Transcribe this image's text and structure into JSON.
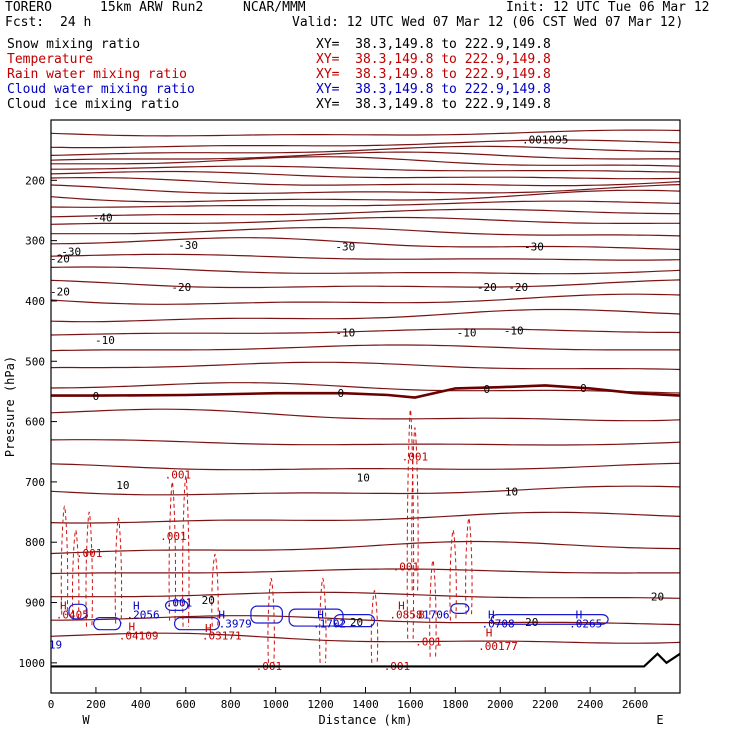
{
  "header": {
    "model": "TORERO",
    "resolution": "15km ARW",
    "run": "Run2",
    "org": "NCAR/MMM",
    "init": "Init: 12 UTC Tue 06 Mar 12",
    "fcst_label": "Fcst:",
    "fcst_value": "24 h",
    "valid": "Valid: 12 UTC Wed 07 Mar 12 (06 CST Wed 07 Mar 12)"
  },
  "legend": [
    {
      "name": "Snow mixing ratio",
      "xy": "XY=  38.3,149.8 to 222.9,149.8",
      "color": "#000000"
    },
    {
      "name": "Temperature",
      "xy": "XY=  38.3,149.8 to 222.9,149.8",
      "color": "#c00000"
    },
    {
      "name": "Rain water mixing ratio",
      "xy": "XY=  38.3,149.8 to 222.9,149.8",
      "color": "#c00000"
    },
    {
      "name": "Cloud water mixing ratio",
      "xy": "XY=  38.3,149.8 to 222.9,149.8",
      "color": "#0000c0"
    },
    {
      "name": "Cloud ice mixing ratio",
      "xy": "XY=  38.3,149.8 to 222.9,149.8",
      "color": "#000000"
    }
  ],
  "chart_data": {
    "type": "cross-section contour",
    "xlabel": "Distance (km)",
    "ylabel": "Pressure (hPa)",
    "xlim": [
      0,
      2800
    ],
    "ylim": [
      1050,
      100
    ],
    "x_ticks": [
      0,
      200,
      400,
      600,
      800,
      1000,
      1200,
      1400,
      1600,
      1800,
      2000,
      2200,
      2400,
      2600
    ],
    "y_ticks": [
      200,
      300,
      400,
      500,
      600,
      700,
      800,
      900,
      1000
    ],
    "x_ends": [
      "W",
      "E"
    ],
    "temperature_isotherms": [
      {
        "value": -40,
        "label": "-40",
        "pressure": 260
      },
      {
        "value": -30,
        "label": "-30",
        "pressure": 310
      },
      {
        "value": -20,
        "label": "-20",
        "pressure": 380
      },
      {
        "value": -10,
        "label": "-10",
        "pressure": 455
      },
      {
        "value": 0,
        "label": "0",
        "pressure": 557
      },
      {
        "value": 10,
        "label": "10",
        "pressure": 700
      },
      {
        "value": 20,
        "label": "20",
        "pressure": 940
      }
    ],
    "isotherm_labels": [
      {
        "text": "-40",
        "x": 230,
        "p": 262
      },
      {
        "text": "-30",
        "x": 90,
        "p": 318
      },
      {
        "text": "-30",
        "x": 610,
        "p": 307
      },
      {
        "text": "-30",
        "x": 1310,
        "p": 310
      },
      {
        "text": "-30",
        "x": 2150,
        "p": 310
      },
      {
        "text": "-20",
        "x": 40,
        "p": 330
      },
      {
        "text": "-20",
        "x": 40,
        "p": 384
      },
      {
        "text": "-20",
        "x": 580,
        "p": 377
      },
      {
        "text": "-20",
        "x": 1940,
        "p": 377
      },
      {
        "text": "-20",
        "x": 2080,
        "p": 377
      },
      {
        "text": "-10",
        "x": 240,
        "p": 465
      },
      {
        "text": "-10",
        "x": 1310,
        "p": 452
      },
      {
        "text": "-10",
        "x": 1850,
        "p": 452
      },
      {
        "text": "-10",
        "x": 2060,
        "p": 449
      },
      {
        "text": "0",
        "x": 200,
        "p": 558
      },
      {
        "text": "0",
        "x": 1290,
        "p": 553
      },
      {
        "text": "0",
        "x": 1940,
        "p": 546
      },
      {
        "text": "0",
        "x": 2370,
        "p": 544
      },
      {
        "text": "10",
        "x": 320,
        "p": 705
      },
      {
        "text": "10",
        "x": 1390,
        "p": 693
      },
      {
        "text": "10",
        "x": 2050,
        "p": 716
      },
      {
        "text": "20",
        "x": 700,
        "p": 896
      },
      {
        "text": "20",
        "x": 1360,
        "p": 932
      },
      {
        "text": "20",
        "x": 2140,
        "p": 932
      },
      {
        "text": "20",
        "x": 2700,
        "p": 890
      }
    ],
    "extrema_labels": [
      {
        "text": "H",
        "x": 55,
        "p": 905,
        "color": "#c00000"
      },
      {
        "text": ".0405",
        "x": 95,
        "p": 920,
        "color": "#c00000"
      },
      {
        "text": "H",
        "x": 380,
        "p": 905,
        "color": "#0000c0"
      },
      {
        "text": ".2056",
        "x": 410,
        "p": 920,
        "color": "#0000c0"
      },
      {
        "text": "H",
        "x": 360,
        "p": 940,
        "color": "#c00000"
      },
      {
        "text": ".04109",
        "x": 390,
        "p": 955,
        "color": "#c00000"
      },
      {
        "text": "H",
        "x": 760,
        "p": 920,
        "color": "#0000c0"
      },
      {
        "text": ".3979",
        "x": 820,
        "p": 935,
        "color": "#0000c0"
      },
      {
        "text": "H",
        "x": 700,
        "p": 942,
        "color": "#c00000"
      },
      {
        "text": ".03171",
        "x": 760,
        "p": 955,
        "color": "#c00000"
      },
      {
        "text": "H",
        "x": 1200,
        "p": 920,
        "color": "#0000c0"
      },
      {
        "text": ".1702",
        "x": 1240,
        "p": 935,
        "color": "#0000c0"
      },
      {
        "text": "H",
        "x": 1560,
        "p": 905,
        "color": "#c00000"
      },
      {
        "text": ".0858",
        "x": 1580,
        "p": 920,
        "color": "#c00000"
      },
      {
        "text": "8",
        "x": 1650,
        "p": 920,
        "color": "#c00000"
      },
      {
        "text": ".1706",
        "x": 1700,
        "p": 920,
        "color": "#0000c0"
      },
      {
        "text": "H",
        "x": 1960,
        "p": 920,
        "color": "#0000c0"
      },
      {
        "text": ".0708",
        "x": 1990,
        "p": 935,
        "color": "#0000c0"
      },
      {
        "text": "H",
        "x": 1950,
        "p": 950,
        "color": "#c00000"
      },
      {
        "text": ".00177",
        "x": 1990,
        "p": 972,
        "color": "#c00000"
      },
      {
        "text": "H",
        "x": 2350,
        "p": 920,
        "color": "#0000c0"
      },
      {
        "text": ".0265",
        "x": 2380,
        "p": 935,
        "color": "#0000c0"
      },
      {
        "text": ".001",
        "x": 570,
        "p": 900,
        "color": "#0000c0"
      },
      {
        "text": "19",
        "x": 20,
        "p": 970,
        "color": "#0000c0"
      },
      {
        "text": ".001",
        "x": 565,
        "p": 688,
        "color": "#c00000"
      },
      {
        "text": ".001",
        "x": 545,
        "p": 790,
        "color": "#c00000"
      },
      {
        "text": ".001",
        "x": 170,
        "p": 818,
        "color": "#c00000"
      },
      {
        "text": ".001",
        "x": 1620,
        "p": 658,
        "color": "#c00000"
      },
      {
        "text": ".001",
        "x": 1580,
        "p": 840,
        "color": "#c00000"
      },
      {
        "text": ".001",
        "x": 1680,
        "p": 965,
        "color": "#c00000"
      },
      {
        "text": ".001",
        "x": 970,
        "p": 1005,
        "color": "#c00000"
      },
      {
        "text": ".001",
        "x": 1540,
        "p": 1005,
        "color": "#c00000"
      },
      {
        "text": ".001095",
        "x": 2200,
        "p": 132,
        "color": "#000000"
      }
    ]
  }
}
